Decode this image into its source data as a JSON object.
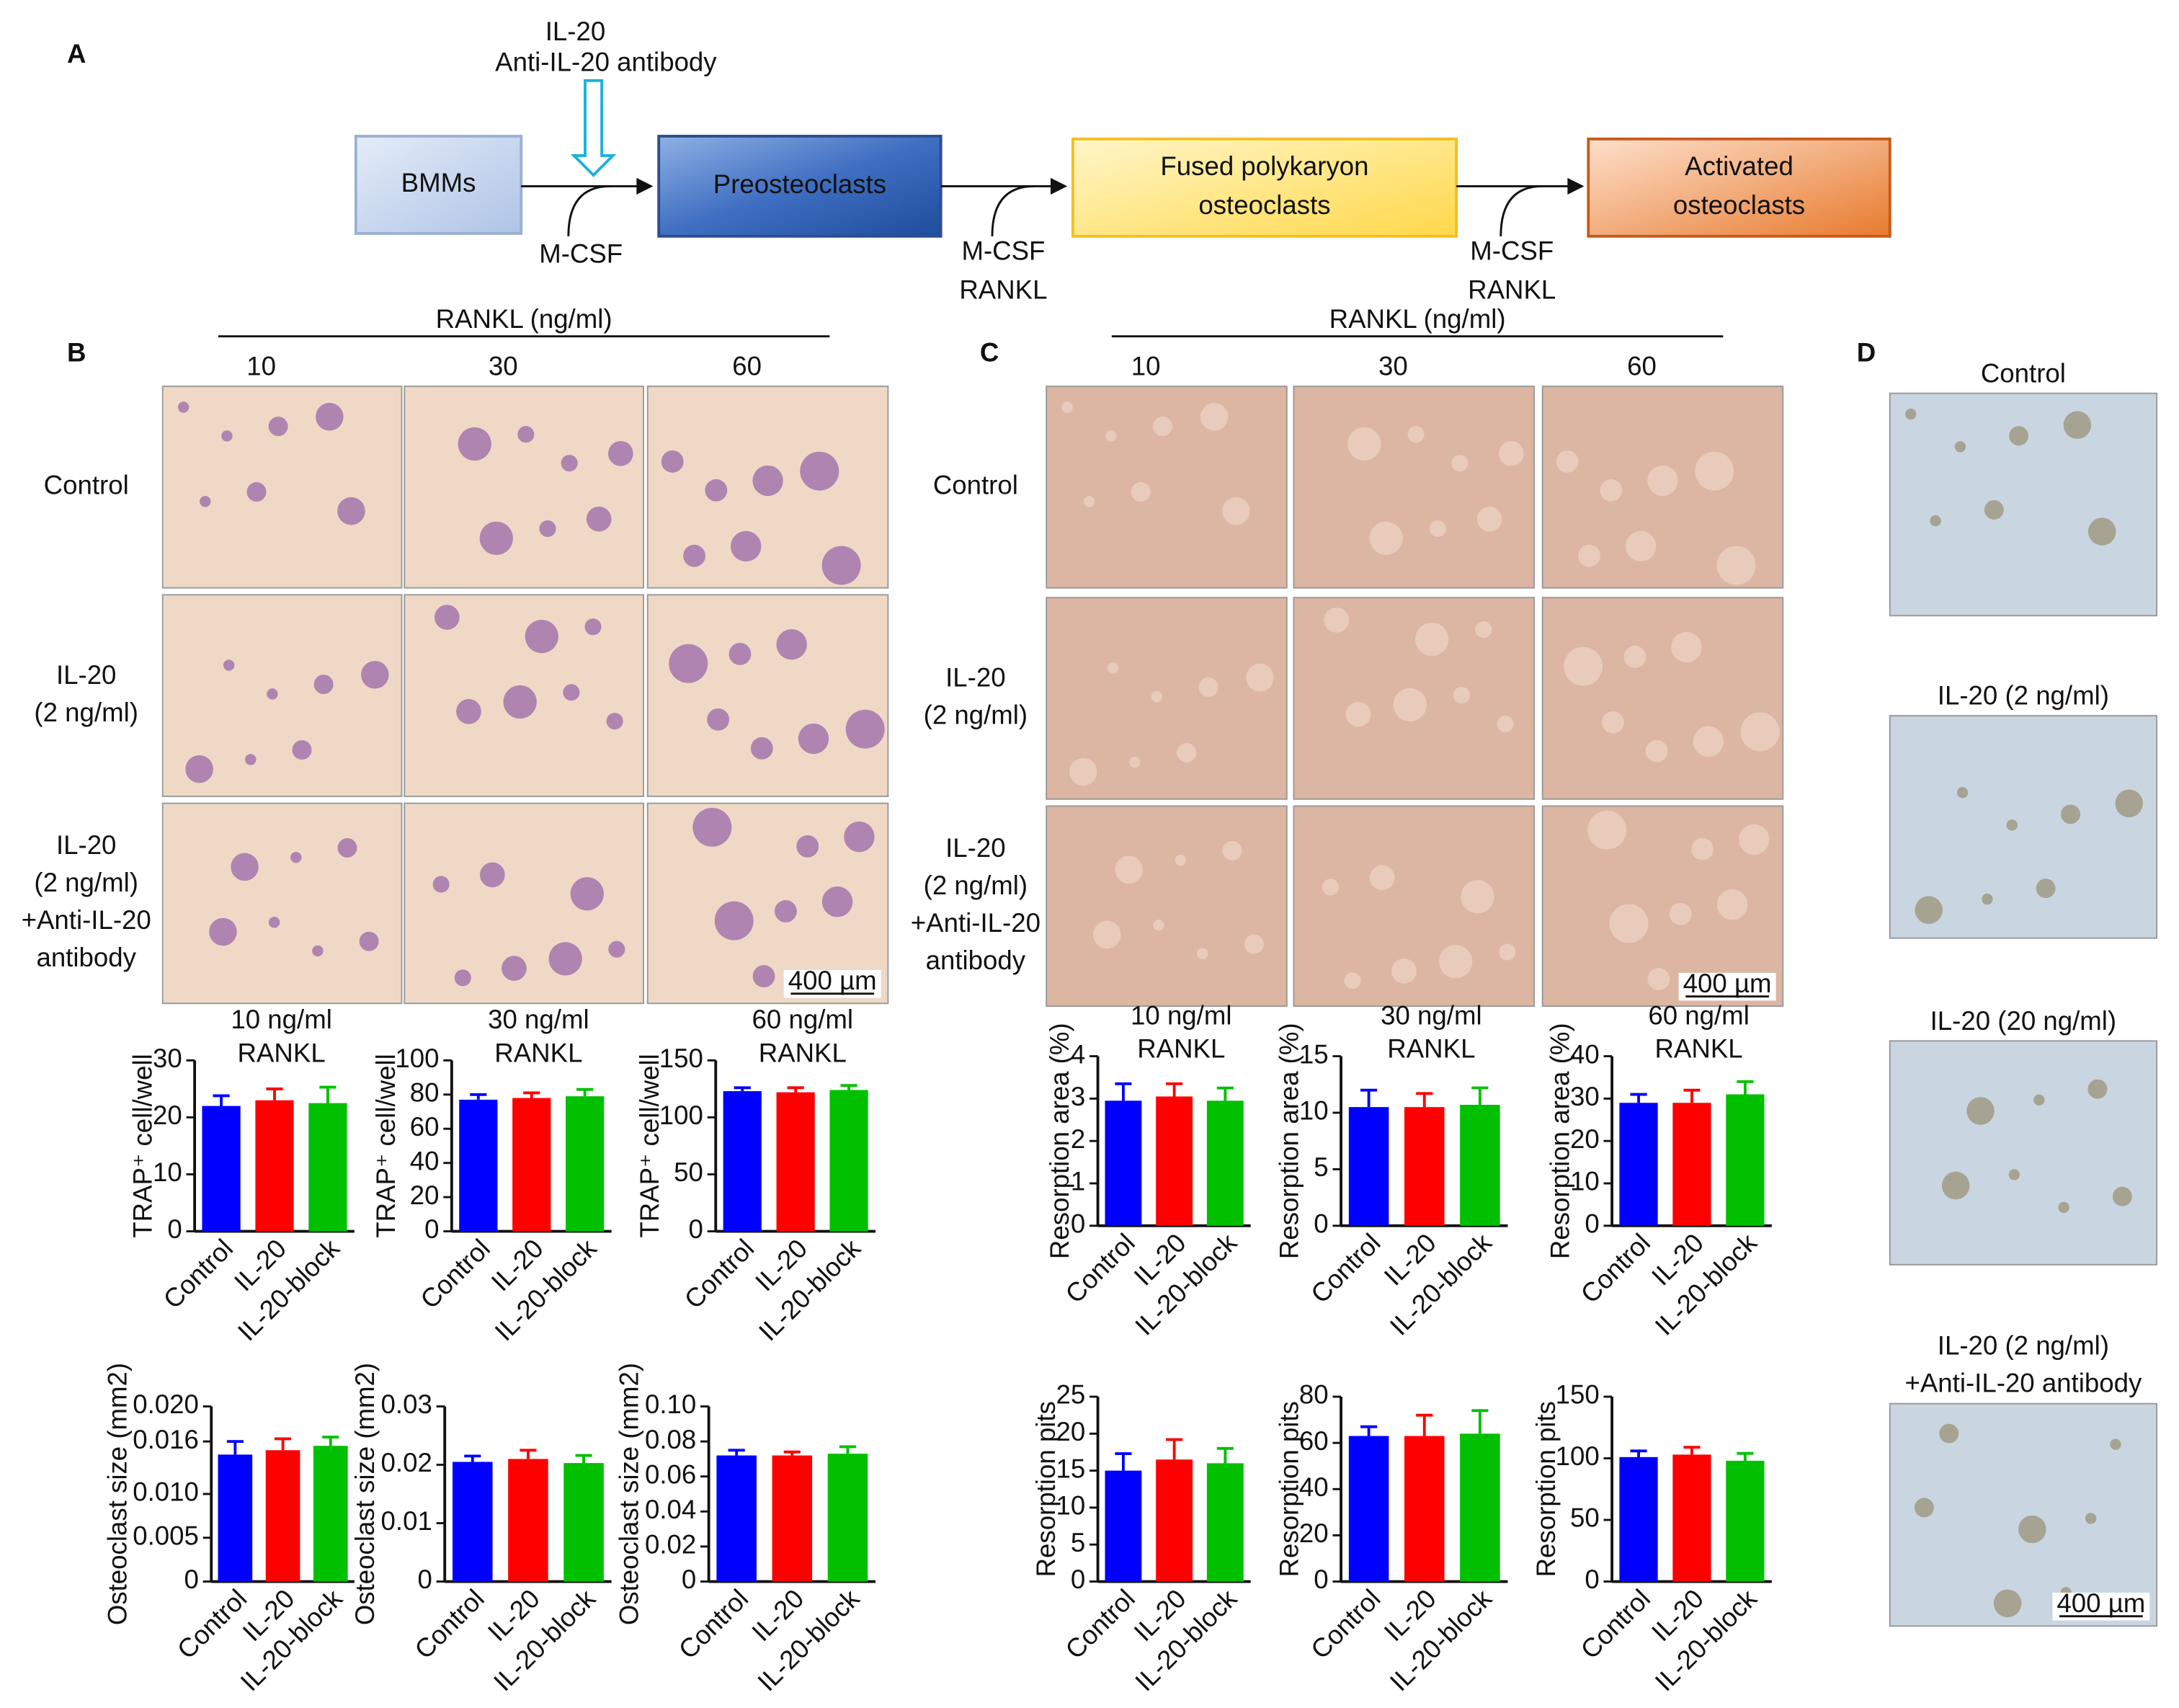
{
  "figure": {
    "panel_a": {
      "label": "A",
      "treatment": [
        "IL-20",
        "Anti-IL-20 antibody"
      ],
      "nodes": [
        {
          "lines": [
            "BMMs"
          ]
        },
        {
          "lines": [
            "Preosteoclasts"
          ]
        },
        {
          "lines": [
            "Fused polykaryon",
            "osteoclasts"
          ]
        },
        {
          "lines": [
            "Activated",
            "osteoclasts"
          ]
        }
      ],
      "steps": [
        [
          "M-CSF"
        ],
        [
          "M-CSF",
          "RANKL"
        ],
        [
          "M-CSF",
          "RANKL"
        ]
      ]
    },
    "panel_b": {
      "label": "B",
      "header": "RANKL (ng/ml)",
      "columns": [
        10,
        30,
        60
      ],
      "rows": [
        [
          "Control"
        ],
        [
          "IL-20",
          "(2 ng/ml)"
        ],
        [
          "IL-20",
          "(2 ng/ml)",
          "+Anti-IL-20",
          "antibody"
        ]
      ],
      "scale_bar": "400 µm"
    },
    "panel_c": {
      "label": "C",
      "header": "RANKL (ng/ml)",
      "columns": [
        10,
        30,
        60
      ],
      "rows": [
        [
          "Control"
        ],
        [
          "IL-20",
          "(2 ng/ml)"
        ],
        [
          "IL-20",
          "(2 ng/ml)",
          "+Anti-IL-20",
          "antibody"
        ]
      ],
      "scale_bar": "400 µm"
    },
    "panel_d": {
      "label": "D",
      "rows": [
        [
          "Control"
        ],
        [
          "IL-20 (2 ng/ml)"
        ],
        [
          "IL-20 (20 ng/ml)"
        ],
        [
          "IL-20 (2 ng/ml)",
          "+Anti-IL-20 antibody"
        ]
      ],
      "scale_bar": "400 µm"
    }
  },
  "chart_data": [
    {
      "type": "bar",
      "title": [
        "10 ng/ml",
        "RANKL"
      ],
      "ylabel": "TRAP⁺ cell/well",
      "categories": [
        "Control",
        "IL-20",
        "IL-20-block"
      ],
      "values": [
        22,
        23,
        22.5
      ],
      "errors": [
        1.8,
        2,
        2.8
      ],
      "colors": [
        "#0000ff",
        "#ff0000",
        "#00c000"
      ],
      "ylim": [
        0,
        30
      ],
      "yticks": [
        0,
        10,
        20,
        30
      ]
    },
    {
      "type": "bar",
      "title": [
        "30 ng/ml",
        "RANKL"
      ],
      "ylabel": "TRAP⁺ cell/well",
      "categories": [
        "Control",
        "IL-20",
        "IL-20-block"
      ],
      "values": [
        77,
        78,
        79
      ],
      "errors": [
        3,
        3,
        4
      ],
      "colors": [
        "#0000ff",
        "#ff0000",
        "#00c000"
      ],
      "ylim": [
        0,
        100
      ],
      "yticks": [
        0,
        20,
        40,
        60,
        80,
        100
      ]
    },
    {
      "type": "bar",
      "title": [
        "60 ng/ml",
        "RANKL"
      ],
      "ylabel": "TRAP⁺ cell/well",
      "categories": [
        "Control",
        "IL-20",
        "IL-20-block"
      ],
      "values": [
        123,
        122,
        124
      ],
      "errors": [
        3,
        4,
        4
      ],
      "colors": [
        "#0000ff",
        "#ff0000",
        "#00c000"
      ],
      "ylim": [
        0,
        150
      ],
      "yticks": [
        0,
        50,
        100,
        150
      ]
    },
    {
      "type": "bar",
      "ylabel": "Osteoclast size (mm2)",
      "categories": [
        "Control",
        "IL-20",
        "IL-20-block"
      ],
      "values": [
        0.0145,
        0.015,
        0.0155
      ],
      "errors": [
        0.0015,
        0.0013,
        0.001
      ],
      "colors": [
        "#0000ff",
        "#ff0000",
        "#00c000"
      ],
      "ylim": [
        0,
        0.02
      ],
      "yticks": [
        0,
        0.005,
        {
          "value": 0.01,
          "label": "0.010"
        },
        0.016,
        {
          "value": 0.02,
          "label": "0.020"
        }
      ]
    },
    {
      "type": "bar",
      "ylabel": "Osteoclast size (mm2)",
      "categories": [
        "Control",
        "IL-20",
        "IL-20-block"
      ],
      "values": [
        0.0205,
        0.021,
        0.0203
      ],
      "errors": [
        0.001,
        0.0015,
        0.0013
      ],
      "colors": [
        "#0000ff",
        "#ff0000",
        "#00c000"
      ],
      "ylim": [
        0,
        0.03
      ],
      "yticks": [
        0,
        0.01,
        0.02,
        0.03
      ]
    },
    {
      "type": "bar",
      "ylabel": "Osteoclast size (mm2)",
      "categories": [
        "Control",
        "IL-20",
        "IL-20-block"
      ],
      "values": [
        0.072,
        0.072,
        0.073
      ],
      "errors": [
        0.003,
        0.002,
        0.004
      ],
      "colors": [
        "#0000ff",
        "#ff0000",
        "#00c000"
      ],
      "ylim": [
        0,
        0.1
      ],
      "yticks": [
        0,
        0.02,
        0.04,
        0.06,
        0.08,
        {
          "value": 0.1,
          "label": "0.10"
        }
      ]
    },
    {
      "type": "bar",
      "title": [
        "10 ng/ml",
        "RANKL"
      ],
      "ylabel": "Resorption area (%)",
      "categories": [
        "Control",
        "IL-20",
        "IL-20-block"
      ],
      "values": [
        2.95,
        3.05,
        2.95
      ],
      "errors": [
        0.4,
        0.3,
        0.3
      ],
      "colors": [
        "#0000ff",
        "#ff0000",
        "#00c000"
      ],
      "ylim": [
        0,
        4
      ],
      "yticks": [
        0,
        1,
        2,
        3,
        4
      ]
    },
    {
      "type": "bar",
      "title": [
        "30 ng/ml",
        "RANKL"
      ],
      "ylabel": "Resorption area (%)",
      "categories": [
        "Control",
        "IL-20",
        "IL-20-block"
      ],
      "values": [
        10.5,
        10.5,
        10.7
      ],
      "errors": [
        1.5,
        1.2,
        1.5
      ],
      "colors": [
        "#0000ff",
        "#ff0000",
        "#00c000"
      ],
      "ylim": [
        0,
        15
      ],
      "yticks": [
        0,
        5,
        10,
        15
      ]
    },
    {
      "type": "bar",
      "title": [
        "60 ng/ml",
        "RANKL"
      ],
      "ylabel": "Resorption area (%)",
      "categories": [
        "Control",
        "IL-20",
        "IL-20-block"
      ],
      "values": [
        29,
        29,
        31
      ],
      "errors": [
        2,
        3,
        3
      ],
      "colors": [
        "#0000ff",
        "#ff0000",
        "#00c000"
      ],
      "ylim": [
        0,
        40
      ],
      "yticks": [
        0,
        10,
        20,
        30,
        40
      ]
    },
    {
      "type": "bar",
      "ylabel": "Resorption pits",
      "categories": [
        "Control",
        "IL-20",
        "IL-20-block"
      ],
      "values": [
        15,
        16.5,
        16
      ],
      "errors": [
        2.3,
        2.7,
        2
      ],
      "colors": [
        "#0000ff",
        "#ff0000",
        "#00c000"
      ],
      "ylim": [
        0,
        25
      ],
      "yticks": [
        0,
        5,
        10,
        15,
        20,
        25
      ]
    },
    {
      "type": "bar",
      "ylabel": "Resorption pits",
      "categories": [
        "Control",
        "IL-20",
        "IL-20-block"
      ],
      "values": [
        63,
        63,
        64
      ],
      "errors": [
        4,
        9,
        10
      ],
      "colors": [
        "#0000ff",
        "#ff0000",
        "#00c000"
      ],
      "ylim": [
        0,
        80
      ],
      "yticks": [
        0,
        20,
        40,
        60,
        80
      ]
    },
    {
      "type": "bar",
      "ylabel": "Resorption pits",
      "categories": [
        "Control",
        "IL-20",
        "IL-20-block"
      ],
      "values": [
        101,
        103,
        98
      ],
      "errors": [
        5,
        6,
        6
      ],
      "colors": [
        "#0000ff",
        "#ff0000",
        "#00c000"
      ],
      "ylim": [
        0,
        150
      ],
      "yticks": [
        0,
        50,
        100,
        150
      ]
    }
  ]
}
